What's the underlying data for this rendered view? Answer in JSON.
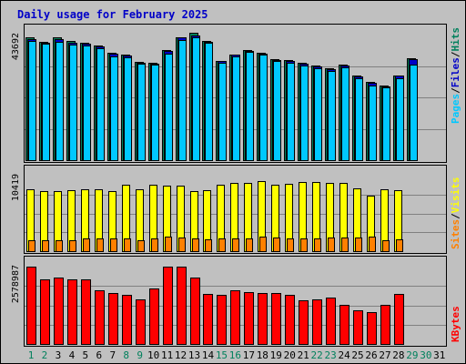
{
  "chart_data": {
    "type": "bar",
    "title": "Daily usage for February 2025",
    "days": [
      "1",
      "2",
      "3",
      "4",
      "5",
      "6",
      "7",
      "8",
      "9",
      "10",
      "11",
      "12",
      "13",
      "14",
      "15",
      "16",
      "17",
      "18",
      "19",
      "20",
      "21",
      "22",
      "23",
      "24",
      "25",
      "26",
      "27",
      "28",
      "29",
      "30",
      "31"
    ],
    "weekend_days": [
      "1",
      "2",
      "8",
      "9",
      "15",
      "16",
      "22",
      "23",
      "29",
      "30"
    ],
    "colors": {
      "background": "#c0c0c0",
      "title": "#0000c8",
      "hits": "#00805c",
      "files": "#0000c8",
      "pages": "#00c8ff",
      "visits": "#ffff00",
      "sites": "#ff8000",
      "kbytes": "#ff0000",
      "weekday_label": "#000000",
      "weekend_label": "#00805c"
    },
    "panels": [
      {
        "id": "top",
        "max_label": "43692",
        "ymax": 43692,
        "legend": [
          {
            "text": "Pages",
            "color": "#00c8ff"
          },
          {
            "text": "/",
            "color": "#000000"
          },
          {
            "text": "Files",
            "color": "#0000c8"
          },
          {
            "text": "/",
            "color": "#000000"
          },
          {
            "text": "Hits",
            "color": "#00805c"
          }
        ],
        "series": [
          {
            "name": "Hits",
            "color": "#00805c",
            "values": [
              42600,
              41300,
              42700,
              41500,
              41000,
              40000,
              37400,
              36600,
              34200,
              33800,
              38200,
              42900,
              44300,
              41600,
              34600,
              36800,
              38400,
              37400,
              35200,
              34800,
              34000,
              32800,
              31900,
              33200,
              29300,
              27200,
              26100,
              29600,
              35600,
              null,
              null
            ]
          },
          {
            "name": "Files",
            "color": "#0000c8",
            "values": [
              42100,
              41000,
              42000,
              41000,
              40600,
              39600,
              37100,
              36300,
              34000,
              33500,
              38000,
              42600,
              43500,
              41200,
              34400,
              36600,
              38100,
              37100,
              34900,
              34500,
              33700,
              32500,
              31600,
              32900,
              29000,
              26900,
              25700,
              29300,
              35000,
              null,
              null
            ]
          },
          {
            "name": "Pages",
            "color": "#00c8ff",
            "values": [
              41500,
              40600,
              41200,
              40200,
              40000,
              38900,
              36200,
              35800,
              33600,
              33100,
              37200,
              41700,
              42900,
              40700,
              34000,
              36200,
              37700,
              36600,
              34400,
              34000,
              32900,
              31900,
              31100,
              32400,
              28500,
              26100,
              25200,
              28600,
              33400,
              null,
              null
            ]
          }
        ]
      },
      {
        "id": "middle",
        "max_label": "10419",
        "ymax": 10419,
        "legend": [
          {
            "text": "Sites",
            "color": "#ff8000"
          },
          {
            "text": "/",
            "color": "#000000"
          },
          {
            "text": "Visits",
            "color": "#ffff00"
          }
        ],
        "series": [
          {
            "name": "Visits",
            "color": "#ffff00",
            "values": [
              8500,
              8300,
              8300,
              8400,
              8500,
              8500,
              8300,
              9200,
              8500,
              9200,
              9100,
              9000,
              8300,
              8400,
              9200,
              9400,
              9400,
              9700,
              9200,
              9300,
              9600,
              9600,
              9400,
              9400,
              8600,
              7600,
              8500,
              8400,
              null,
              null,
              null
            ]
          },
          {
            "name": "Sites",
            "color": "#ff8000",
            "values": [
              1500,
              1500,
              1550,
              1550,
              1700,
              1750,
              1800,
              1800,
              1550,
              1800,
              2000,
              1850,
              1700,
              1650,
              1700,
              1750,
              1800,
              1950,
              1900,
              1750,
              1800,
              1800,
              1850,
              1850,
              1850,
              1950,
              1550,
              1600,
              null,
              null,
              null
            ]
          }
        ]
      },
      {
        "id": "bottom",
        "max_label": "2578987",
        "ymax": 2578987,
        "legend": [
          {
            "text": "KBytes",
            "color": "#ff0000"
          }
        ],
        "series": [
          {
            "name": "KBytes",
            "color": "#ff0000",
            "values": [
              2578987,
              2145000,
              2230000,
              2140000,
              2160000,
              1790000,
              1700000,
              1650000,
              1490000,
              1840000,
              2590000,
              2590000,
              2230000,
              1680000,
              1640000,
              1780000,
              1740000,
              1700000,
              1700000,
              1630000,
              1450000,
              1490000,
              1560000,
              1310000,
              1130000,
              1070000,
              1300000,
              1670000,
              null,
              null,
              null
            ]
          }
        ]
      }
    ]
  }
}
